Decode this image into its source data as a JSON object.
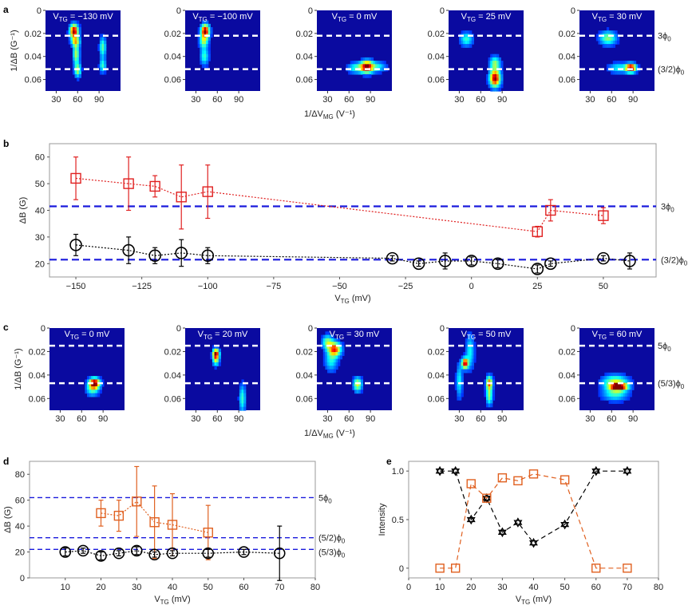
{
  "colors": {
    "red": "#e02020",
    "black": "#000000",
    "orange": "#e06020",
    "blue": "#1a1adc",
    "heat_bg": "#0a0aa0"
  },
  "panels": {
    "a": {
      "letter": "a",
      "ylabel": "1/ΔB (G⁻¹)",
      "xlabel": "1/ΔV_MG (V⁻¹)",
      "yticks": [
        "0",
        "0.02",
        "0.04",
        "0.06"
      ],
      "xticks": [
        "30",
        "60",
        "90"
      ],
      "titles": [
        "V_TG = −130 mV",
        "V_TG = −100 mV",
        "V_TG = 0 mV",
        "V_TG = 25 mV",
        "V_TG = 30 mV"
      ],
      "dash_labels": [
        "3ϕ0",
        "(3/2)ϕ0"
      ],
      "dash_y": [
        0.022,
        0.051
      ]
    },
    "b": {
      "letter": "b",
      "xlabel": "V_TG (mV)",
      "ylabel": "ΔB (G)",
      "line_labels": [
        "3ϕ0",
        "(3/2)ϕ0"
      ]
    },
    "c": {
      "letter": "c",
      "ylabel": "1/ΔB (G⁻¹)",
      "xlabel": "1/ΔV_MG (V⁻¹)",
      "yticks": [
        "0",
        "0.02",
        "0.04",
        "0.06"
      ],
      "xticks": [
        "30",
        "60",
        "90"
      ],
      "titles": [
        "V_TG = 0 mV",
        "V_TG = 20 mV",
        "V_TG = 30 mV",
        "V_TG = 50 mV",
        "V_TG = 60 mV"
      ],
      "dash_labels": [
        "5ϕ0",
        "(5/3)ϕ0"
      ],
      "dash_y": [
        0.015,
        0.047
      ]
    },
    "d": {
      "letter": "d",
      "xlabel": "V_TG (mV)",
      "ylabel": "ΔB (G)",
      "line_labels": [
        "5ϕ0",
        "(5/2)ϕ0",
        "(5/3)ϕ0"
      ]
    },
    "e": {
      "letter": "e",
      "xlabel": "V_TG (mV)",
      "ylabel": "Intensity"
    }
  },
  "chart_data": [
    {
      "id": "b",
      "type": "scatter",
      "xlim": [
        -160,
        70
      ],
      "ylim": [
        15,
        65
      ],
      "xticks": [
        -150,
        -125,
        -100,
        -75,
        -50,
        -25,
        0,
        25,
        50
      ],
      "yticks": [
        20,
        30,
        40,
        50,
        60
      ],
      "hlines": [
        41.5,
        21.5
      ],
      "series": [
        {
          "marker": "square",
          "color": "red",
          "x": [
            -150,
            -130,
            -120,
            -110,
            -100,
            25,
            30,
            50
          ],
          "y": [
            52,
            50,
            49,
            45,
            47,
            32,
            40,
            38
          ],
          "err": [
            8,
            10,
            4,
            12,
            10,
            2,
            4,
            3
          ]
        },
        {
          "marker": "circle",
          "color": "black",
          "x": [
            -150,
            -130,
            -120,
            -110,
            -100,
            -30,
            -20,
            -10,
            0,
            10,
            25,
            30,
            50,
            60
          ],
          "y": [
            27,
            25,
            23,
            24,
            23,
            22,
            20,
            21,
            21,
            20,
            18,
            20,
            22,
            21
          ],
          "err": [
            4,
            5,
            3,
            5,
            3,
            1,
            1,
            3,
            1.5,
            1.5,
            1.5,
            1,
            1,
            3
          ]
        }
      ]
    },
    {
      "id": "d",
      "type": "scatter",
      "xlim": [
        0,
        80
      ],
      "ylim": [
        0,
        90
      ],
      "xticks": [
        10,
        20,
        30,
        40,
        50,
        60,
        70,
        80
      ],
      "yticks": [
        0,
        20,
        40,
        60,
        80
      ],
      "hlines": [
        62,
        31,
        22
      ],
      "series": [
        {
          "marker": "square",
          "color": "orange",
          "x": [
            20,
            25,
            30,
            35,
            40,
            50
          ],
          "y": [
            50,
            48,
            59,
            43,
            41,
            35
          ],
          "err": [
            10,
            12,
            27,
            28,
            24,
            21
          ]
        },
        {
          "marker": "circle",
          "color": "black",
          "x": [
            10,
            15,
            20,
            25,
            30,
            35,
            40,
            50,
            60,
            70
          ],
          "y": [
            20,
            21,
            17,
            19,
            21,
            18,
            19,
            19,
            20,
            19
          ],
          "err": [
            3,
            2,
            3,
            2,
            3,
            2,
            2,
            3,
            2,
            21
          ]
        }
      ]
    },
    {
      "id": "e",
      "type": "line",
      "xlim": [
        0,
        80
      ],
      "ylim": [
        -0.1,
        1.1
      ],
      "xticks": [
        0,
        10,
        20,
        30,
        40,
        50,
        60,
        70,
        80
      ],
      "yticks": [
        0,
        0.5,
        1.0
      ],
      "yticklabels": [
        "0",
        "0.5",
        "1.0"
      ],
      "series": [
        {
          "marker": "star",
          "color": "black",
          "x": [
            10,
            15,
            20,
            25,
            30,
            35,
            40,
            50,
            60,
            70
          ],
          "y": [
            1.0,
            1.0,
            0.5,
            0.72,
            0.37,
            0.47,
            0.26,
            0.45,
            1.0,
            1.0
          ]
        },
        {
          "marker": "square",
          "color": "orange",
          "x": [
            10,
            15,
            20,
            25,
            30,
            35,
            40,
            50,
            60,
            70
          ],
          "y": [
            0,
            0,
            0.87,
            0.72,
            0.93,
            0.9,
            0.97,
            0.91,
            0,
            0
          ]
        }
      ]
    },
    {
      "id": "a",
      "type": "heatmap",
      "xlim": [
        15,
        120
      ],
      "ylim": [
        0,
        0.07
      ],
      "maps": [
        {
          "spots": [
            [
              55,
              0.018,
              1.0,
              4,
              0.004
            ],
            [
              57,
              0.027,
              0.55,
              4,
              0.003
            ],
            [
              58,
              0.038,
              0.5,
              3,
              0.006
            ],
            [
              60,
              0.052,
              0.5,
              3,
              0.004
            ],
            [
              95,
              0.032,
              0.4,
              3,
              0.006
            ],
            [
              95,
              0.048,
              0.35,
              3,
              0.004
            ]
          ]
        },
        {
          "spots": [
            [
              43,
              0.018,
              1.0,
              4,
              0.004
            ],
            [
              41,
              0.027,
              0.45,
              4,
              0.004
            ],
            [
              42,
              0.04,
              0.35,
              4,
              0.005
            ]
          ]
        },
        {
          "spots": [
            [
              85,
              0.049,
              1.0,
              6,
              0.0035
            ],
            [
              70,
              0.05,
              0.35,
              8,
              0.003
            ],
            [
              100,
              0.049,
              0.3,
              8,
              0.003
            ]
          ]
        },
        {
          "spots": [
            [
              80,
              0.059,
              1.0,
              5,
              0.005
            ],
            [
              40,
              0.025,
              0.35,
              6,
              0.004
            ],
            [
              80,
              0.046,
              0.45,
              5,
              0.004
            ]
          ]
        },
        {
          "spots": [
            [
              87,
              0.05,
              1.0,
              5,
              0.0025
            ],
            [
              55,
              0.024,
              0.45,
              8,
              0.004
            ],
            [
              70,
              0.05,
              0.3,
              10,
              0.003
            ]
          ]
        }
      ]
    },
    {
      "id": "c",
      "type": "heatmap",
      "xlim": [
        15,
        120
      ],
      "ylim": [
        0,
        0.07
      ],
      "maps": [
        {
          "spots": [
            [
              78,
              0.047,
              1.0,
              5,
              0.003
            ],
            [
              75,
              0.052,
              0.35,
              6,
              0.004
            ]
          ]
        },
        {
          "spots": [
            [
              58,
              0.022,
              1.0,
              3,
              0.003
            ],
            [
              58,
              0.028,
              0.4,
              3,
              0.003
            ],
            [
              95,
              0.06,
              0.35,
              3,
              0.008
            ]
          ]
        },
        {
          "spots": [
            [
              40,
              0.018,
              0.8,
              6,
              0.004
            ],
            [
              30,
              0.012,
              0.45,
              5,
              0.004
            ],
            [
              72,
              0.048,
              0.55,
              4,
              0.004
            ],
            [
              35,
              0.028,
              0.3,
              6,
              0.006
            ]
          ]
        },
        {
          "spots": [
            [
              38,
              0.03,
              0.95,
              3,
              0.003
            ],
            [
              72,
              0.047,
              0.75,
              3,
              0.004
            ],
            [
              72,
              0.058,
              0.45,
              3,
              0.005
            ],
            [
              30,
              0.045,
              0.3,
              3,
              0.01
            ],
            [
              45,
              0.02,
              0.3,
              4,
              0.01
            ]
          ]
        },
        {
          "spots": [
            [
              70,
              0.05,
              1.0,
              8,
              0.002
            ],
            [
              65,
              0.046,
              0.5,
              12,
              0.004
            ],
            [
              65,
              0.056,
              0.35,
              12,
              0.004
            ]
          ]
        }
      ]
    }
  ]
}
